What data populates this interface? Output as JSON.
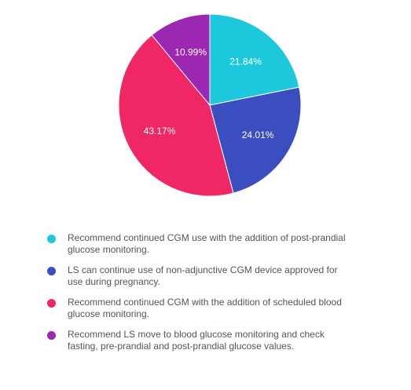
{
  "chart_data": {
    "type": "pie",
    "slices": [
      {
        "label": "Recommend continued CGM use with the addition of post-prandial glucose monitoring.",
        "value": 21.84,
        "display": "21.84%",
        "color": "#1ec8dc"
      },
      {
        "label": "LS can continue use of non-adjunctive CGM device approved for use during pregnancy.",
        "value": 24.01,
        "display": "24.01%",
        "color": "#3b4ec0"
      },
      {
        "label": "Recommend continued CGM with the addition of scheduled blood glucose monitoring.",
        "value": 43.17,
        "display": "43.17%",
        "color": "#ef2764"
      },
      {
        "label": "Recommend LS move to blood glucose monitoring and check fasting, pre-prandial and post-prandial glucose values.",
        "value": 10.99,
        "display": "10.99%",
        "color": "#9c27b0"
      }
    ],
    "start_angle": "top",
    "direction": "clockwise",
    "legend_position": "bottom"
  }
}
